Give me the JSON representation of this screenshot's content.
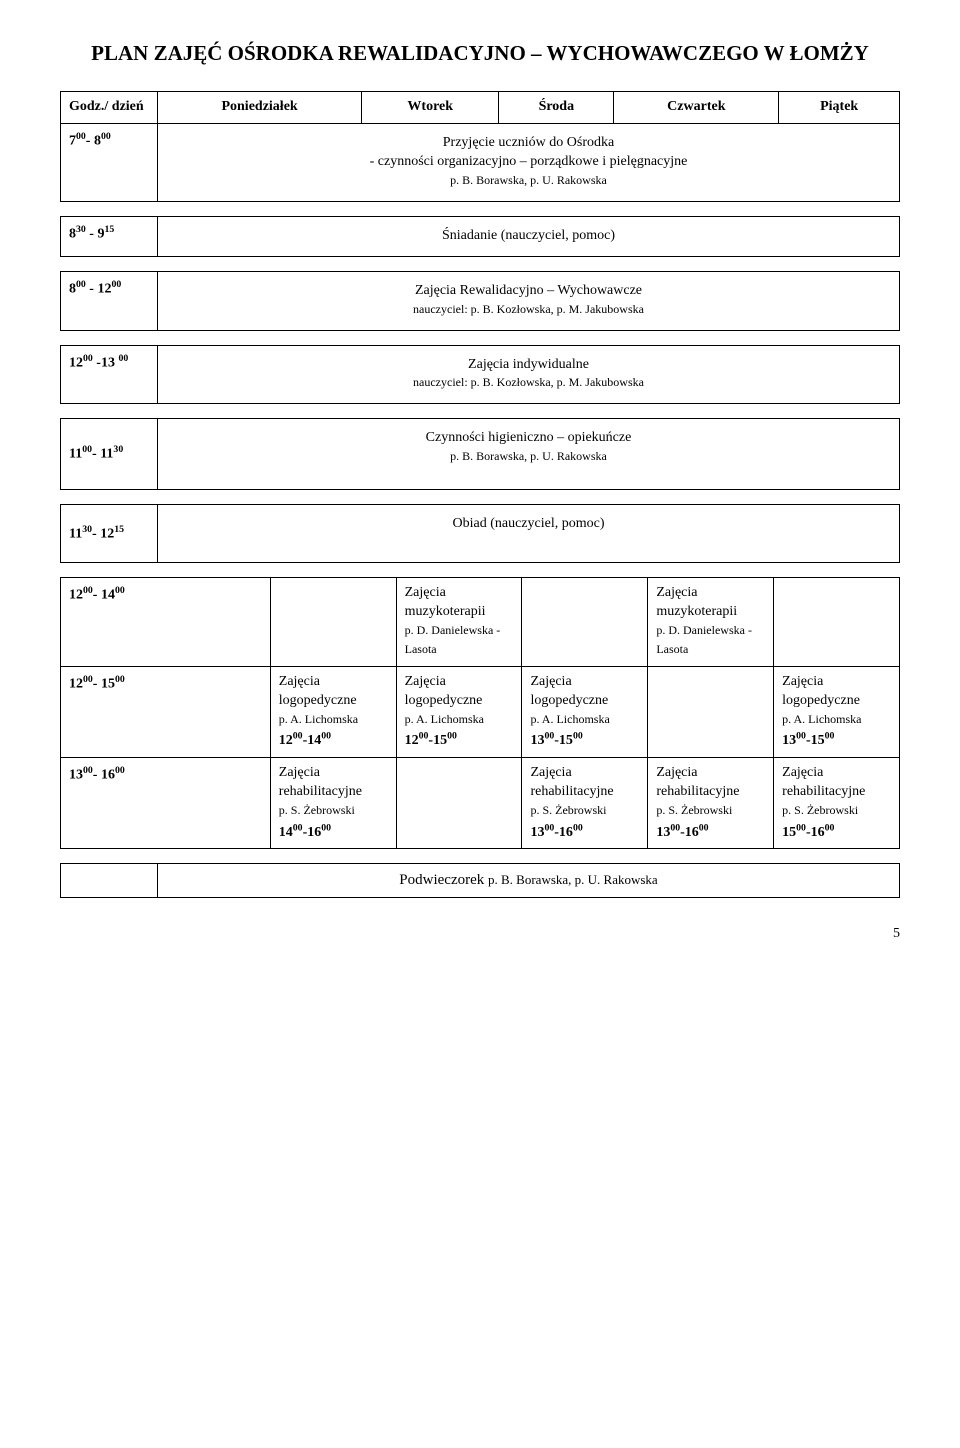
{
  "title": "PLAN ZAJĘĆ OŚRODKA REWALIDACYJNO – WYCHOWAWCZEGO W ŁOMŻY",
  "header": {
    "time_col": "Godz./ dzień",
    "days": [
      "Poniedziałek",
      "Wtorek",
      "Środa",
      "Czwartek",
      "Piątek"
    ]
  },
  "rows": {
    "r1": {
      "time": "7<sup>00</sup>- 8<sup>00</sup>",
      "content": "Przyjęcie uczniów do Ośrodka<br>- czynności organizacyjno – porządkowe i pielęgnacyjne<br><span class='note-small'>p. B. Borawska, p. U. Rakowska</span>"
    },
    "r2": {
      "time": "8<sup>30</sup> - 9<sup>15</sup>",
      "content": "Śniadanie (nauczyciel, pomoc)"
    },
    "r3": {
      "time": "8<sup>00</sup> - 12<sup>00</sup>",
      "content": "Zajęcia Rewalidacyjno – Wychowawcze<br><span class='note-small'>nauczyciel: p. B. Kozłowska, p. M. Jakubowska</span>"
    },
    "r4": {
      "time": "12<sup>00</sup> -13 <sup>00</sup>",
      "content": "Zajęcia indywidualne<br><span class='note-small'>nauczyciel: p. B. Kozłowska, p. M. Jakubowska</span>"
    },
    "r5": {
      "time": "11<sup>00</sup>- 11<sup>30</sup>",
      "content": "Czynności higieniczno – opiekuńcze<br><span class='note-small'>p. B. Borawska, p. U. Rakowska</span>"
    },
    "r6": {
      "time": "11<sup>30</sup>- 12<sup>15</sup>",
      "content": "Obiad (nauczyciel, pomoc)"
    },
    "r7": {
      "time": "12<sup>00</sup>- 14<sup>00</sup>",
      "wt": "Zajęcia muzykoterapii<br><span class='note-small'>p. D. Danielewska - Lasota</span>",
      "czw": "Zajęcia muzykoterapii<br><span class='note-small'>p. D. Danielewska - Lasota</span>"
    },
    "r8": {
      "time": "12<sup>00</sup>- 15<sup>00</sup>",
      "pon": "Zajęcia logopedyczne<br><span class='note-small'>p. A. Lichomska</span><br><b>12<sup>00</sup>-14<sup>00</sup></b>",
      "wt": "Zajęcia logopedyczne<br><span class='note-small'>p. A. Lichomska</span><br><b>12<sup>00</sup>-15<sup>00</sup></b>",
      "sr": "Zajęcia logopedyczne<br><span class='note-small'>p. A. Lichomska</span><br><b>13<sup>00</sup>-15<sup>00</sup></b>",
      "pt": "Zajęcia logopedyczne<br><span class='note-small'>p. A. Lichomska</span><br><b>13<sup>00</sup>-15<sup>00</sup></b>"
    },
    "r9": {
      "time": "13<sup>00</sup>- 16<sup>00</sup>",
      "pon": "Zajęcia rehabilitacyjne<br><span class='note-small'>p. S. Żebrowski</span><br><b>14<sup>00</sup>-16<sup>00</sup></b>",
      "sr": "Zajęcia rehabilitacyjne<br><span class='note-small'>p. S. Żebrowski</span><br><b>13<sup>00</sup>-16<sup>00</sup></b>",
      "czw": "Zajęcia rehabilitacyjne<br><span class='note-small'>p. S. Żebrowski</span><br><b>13<sup>00</sup>-16<sup>00</sup></b>",
      "pt": "Zajęcia rehabilitacyjne<br><span class='note-small'>p. S. Żebrowski</span><br><b>15<sup>00</sup>-16<sup>00</sup></b>"
    },
    "r10": {
      "content": "Podwieczorek <span style='font-size:13px'>p. B. Borawska, p. U. Rakowska</span>"
    }
  },
  "page_number": "5"
}
